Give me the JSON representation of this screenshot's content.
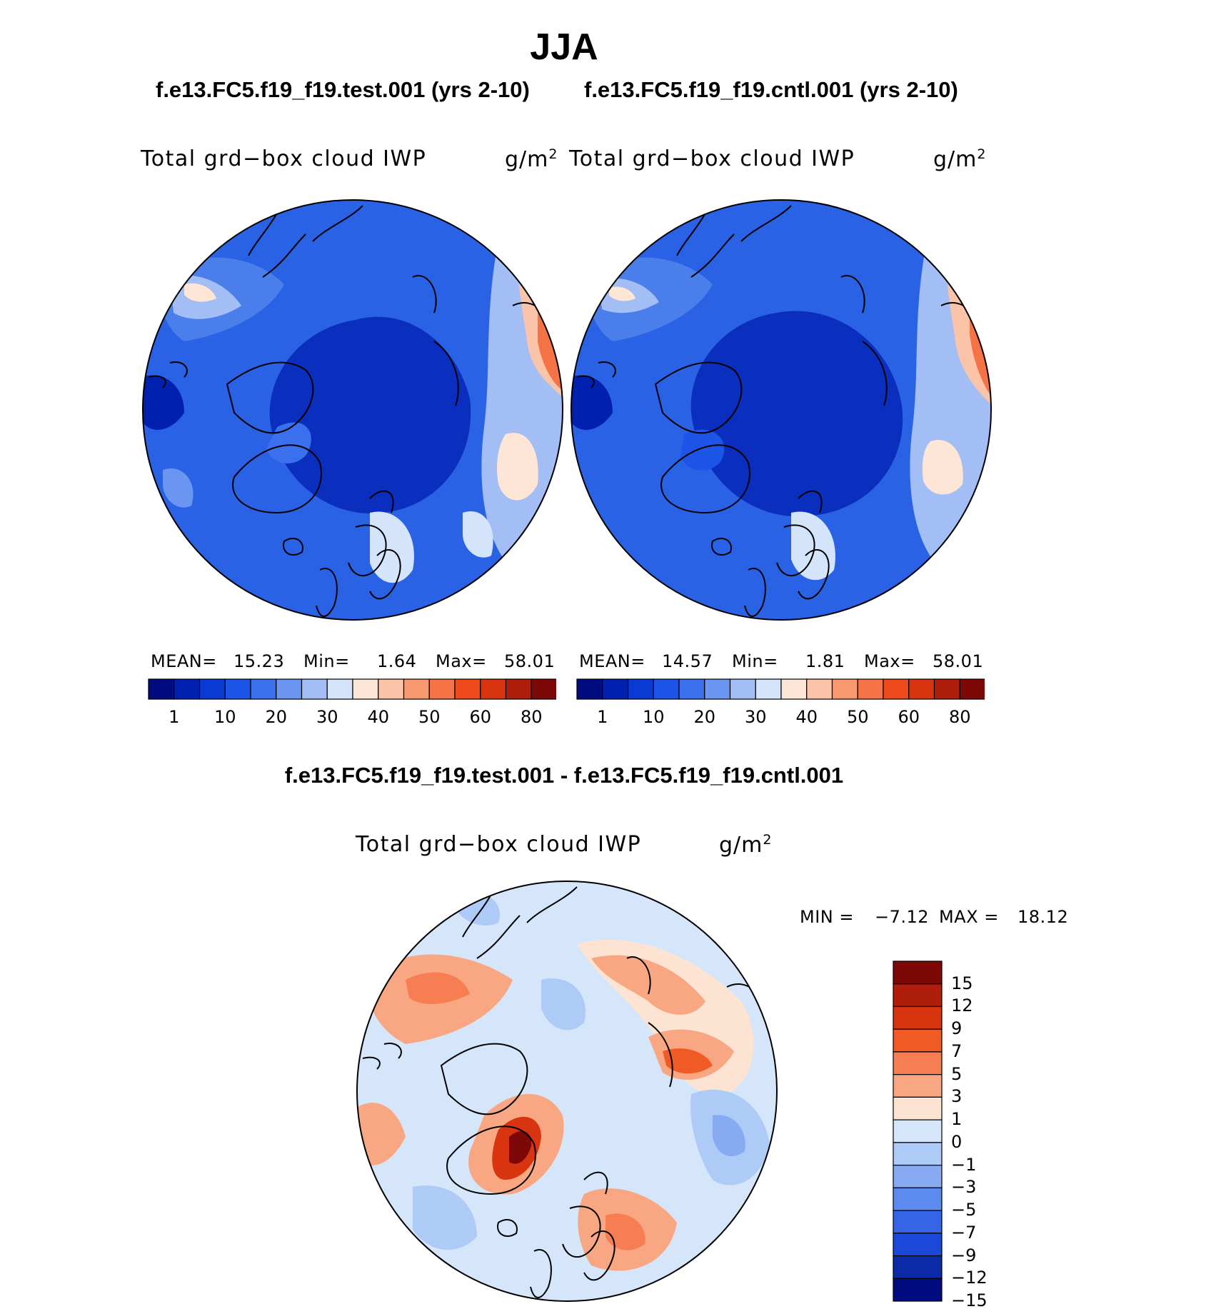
{
  "title": "JJA",
  "panels": [
    {
      "case_title": "f.e13.FC5.f19_f19.test.001 (yrs 2-10)",
      "variable": "Total grd−box cloud IWP",
      "units_base": "g/m",
      "units_exp": "2",
      "stats": {
        "mean_label": "MEAN=",
        "mean": "15.23",
        "min_label": "Min=",
        "min": "1.64",
        "max_label": "Max=",
        "max": "58.01"
      }
    },
    {
      "case_title": "f.e13.FC5.f19_f19.cntl.001 (yrs 2-10)",
      "variable": "Total grd−box cloud IWP",
      "units_base": "g/m",
      "units_exp": "2",
      "stats": {
        "mean_label": "MEAN=",
        "mean": "14.57",
        "min_label": "Min=",
        "min": "1.81",
        "max_label": "Max=",
        "max": "58.01"
      }
    }
  ],
  "colorbar_top": {
    "colors": [
      "#000c80",
      "#0021b0",
      "#0a3ad4",
      "#1c55e8",
      "#3a70ee",
      "#6a95f0",
      "#a2bef4",
      "#d4e4fa",
      "#fde6d6",
      "#fbc4a8",
      "#f9996f",
      "#f57345",
      "#ee4a1c",
      "#d8340f",
      "#ae1e0a",
      "#7e0707"
    ],
    "ticks": [
      "1",
      "10",
      "20",
      "30",
      "40",
      "50",
      "60",
      "80"
    ]
  },
  "difference": {
    "title": "f.e13.FC5.f19_f19.test.001 - f.e13.FC5.f19_f19.cntl.001",
    "variable": "Total grd−box cloud IWP",
    "units_base": "g/m",
    "units_exp": "2",
    "min_label": "MIN =",
    "min": "−7.12",
    "max_label": "MAX =",
    "max": "18.12",
    "colorbar": {
      "colors_top_to_bottom": [
        "#7e0707",
        "#ae1e0a",
        "#d8340f",
        "#f05a25",
        "#f77e52",
        "#f9a783",
        "#fde4d2",
        "#d6e6fa",
        "#aecaf6",
        "#86abf2",
        "#5c8aee",
        "#3565e6",
        "#1b48d8",
        "#0a2aa8",
        "#000c80"
      ],
      "ticks": [
        "15",
        "12",
        "9",
        "7",
        "5",
        "3",
        "1",
        "0",
        "−1",
        "−3",
        "−5",
        "−7",
        "−9",
        "−12",
        "−15"
      ]
    }
  }
}
